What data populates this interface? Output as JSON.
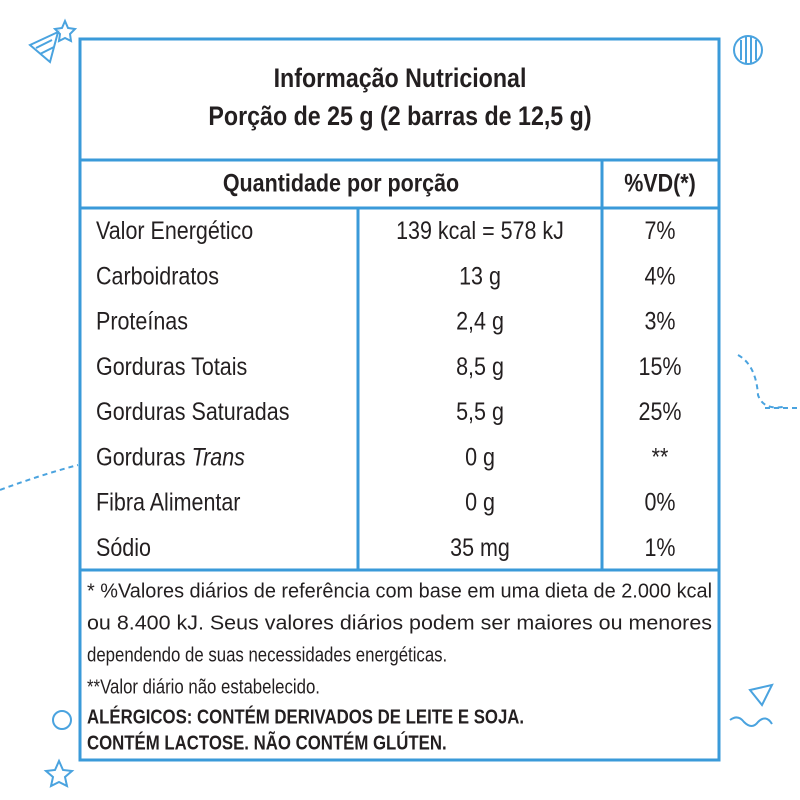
{
  "header": {
    "title": "Informação Nutricional",
    "subtitle": "Porção de 25 g (2 barras de 12,5 g)"
  },
  "table": {
    "columns": [
      "Quantidade por porção",
      "%VD(*)"
    ],
    "rows": [
      {
        "name": "Valor Energético",
        "amount": "139 kcal = 578 kJ",
        "vd": "7%"
      },
      {
        "name": "Carboidratos",
        "amount": "13 g",
        "vd": "4%"
      },
      {
        "name": "Proteínas",
        "amount": "2,4 g",
        "vd": "3%"
      },
      {
        "name": "Gorduras Totais",
        "amount": "8,5 g",
        "vd": "15%"
      },
      {
        "name": "Gorduras Saturadas",
        "amount": "5,5 g",
        "vd": "25%"
      },
      {
        "name": "Gorduras",
        "name_italic": "Trans",
        "amount": "0 g",
        "vd": "**"
      },
      {
        "name": "Fibra Alimentar",
        "amount": "0 g",
        "vd": "0%"
      },
      {
        "name": "Sódio",
        "amount": "35 mg",
        "vd": "1%"
      }
    ]
  },
  "footnotes": [
    "* %Valores diários de referência com base em uma dieta de 2.000 kcal",
    "ou 8.400 kJ. Seus valores diários podem ser maiores ou menores",
    "dependendo de suas necessidades energéticas.",
    "**Valor diário não estabelecido."
  ],
  "allergens": [
    "ALÉRGICOS: CONTÉM DERIVADOS DE LEITE E SOJA.",
    "CONTÉM LACTOSE. NÃO CONTÉM GLÚTEN."
  ]
}
